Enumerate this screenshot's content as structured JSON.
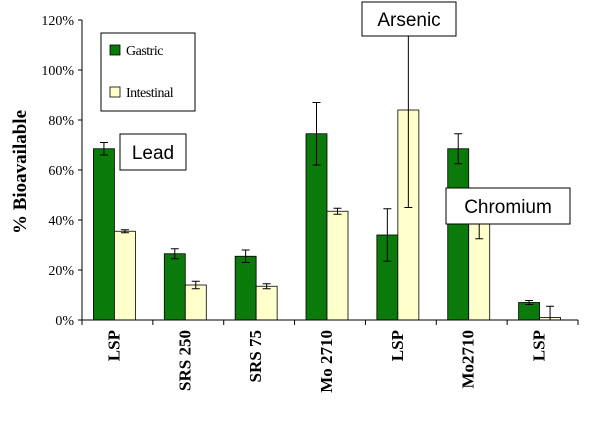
{
  "chart_data": {
    "type": "bar",
    "categories": [
      "LSP",
      "SRS 250",
      "SRS 75",
      "Mo 2710",
      "LSP",
      "Mo2710",
      "LSP"
    ],
    "series": [
      {
        "name": "Gastric",
        "color": "#0a7a0a",
        "values": [
          68.5,
          26.5,
          25.5,
          74.5,
          34,
          68.5,
          7
        ],
        "error": [
          2.5,
          2,
          2.5,
          12.5,
          10.5,
          6,
          0.8
        ]
      },
      {
        "name": "Intestinal",
        "color": "#ffffcc",
        "values": [
          35.5,
          14,
          13.5,
          43.5,
          84,
          40,
          1
        ],
        "error": [
          0.6,
          1.5,
          1,
          1.2,
          39,
          7.5,
          4.5
        ]
      }
    ],
    "y_ticks": [
      "0%",
      "20%",
      "40%",
      "60%",
      "80%",
      "100%",
      "120%"
    ],
    "ylim": [
      0,
      120
    ],
    "ylabel": "% Bioavailable",
    "xlabel": "",
    "title": "",
    "legend_position": "top-left",
    "annotations": [
      "Lead",
      "Arsenic",
      "Chromium"
    ]
  }
}
